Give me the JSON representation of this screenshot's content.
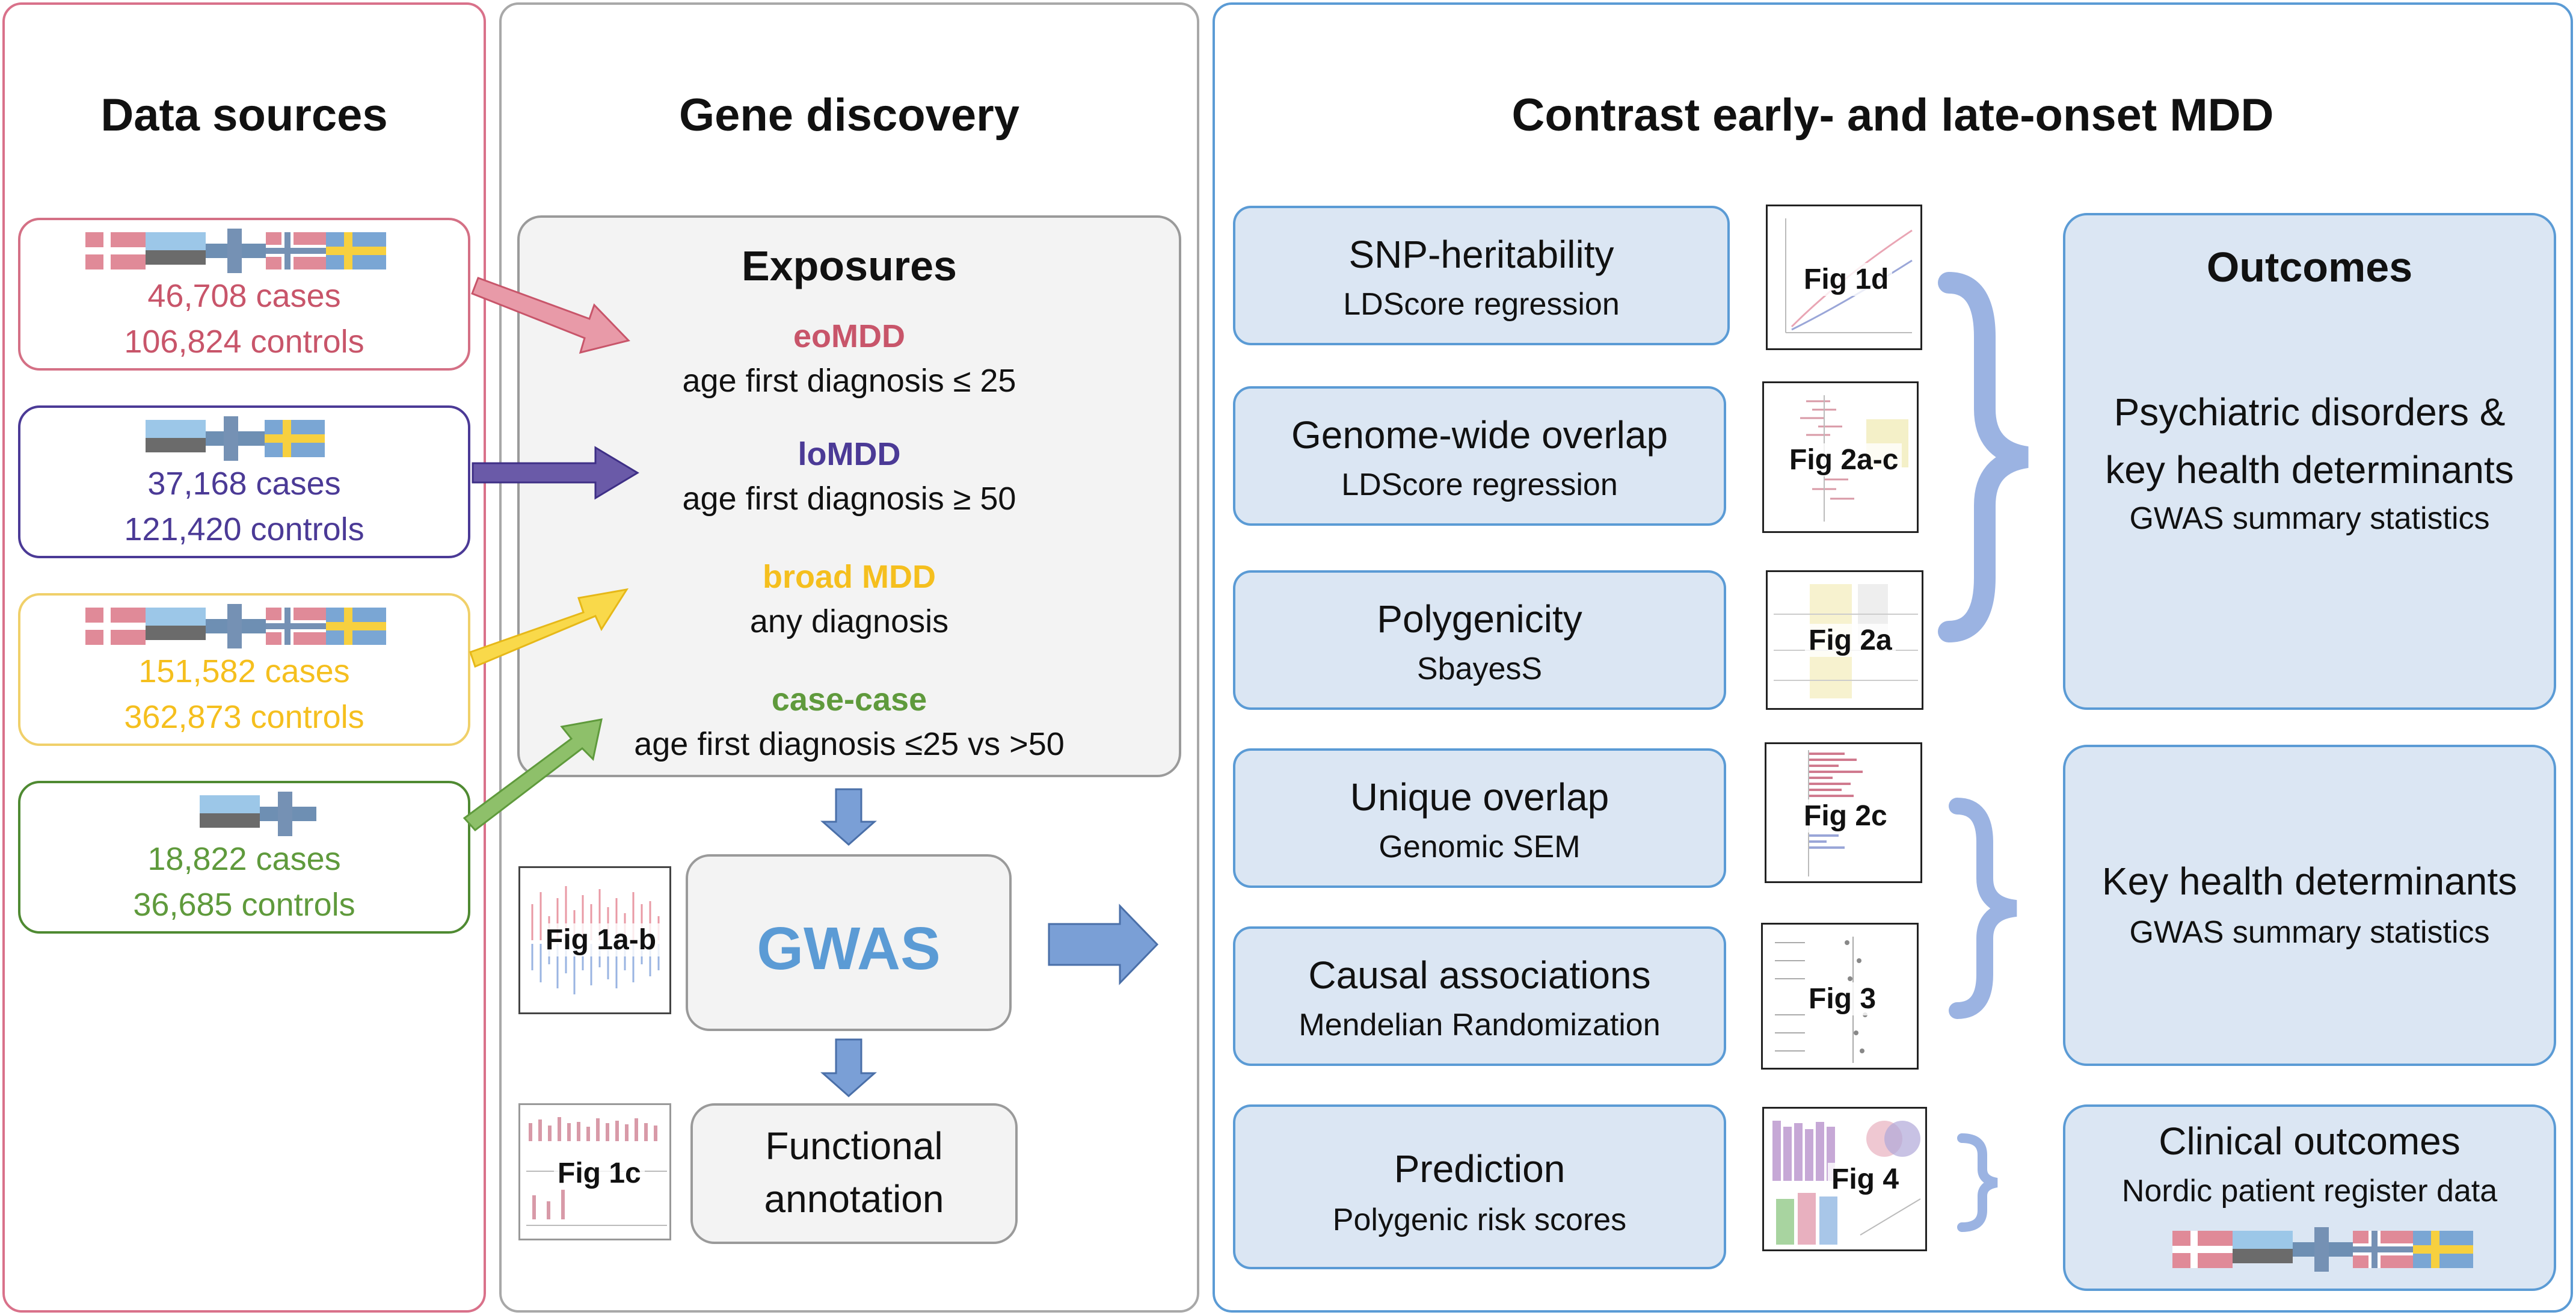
{
  "panels": {
    "data_sources_title": "Data sources",
    "gene_discovery_title": "Gene discovery",
    "contrast_title": "Contrast early- and late-onset MDD"
  },
  "sources": [
    {
      "cases": "46,708  cases",
      "controls": "106,824 controls",
      "color": "#c8556a"
    },
    {
      "cases": "37,168 cases",
      "controls": "121,420 controls",
      "color": "#4b3a96"
    },
    {
      "cases": "151,582 cases",
      "controls": "362,873 controls",
      "color": "#f5bf1e"
    },
    {
      "cases": "18,822 cases",
      "controls": "36,685 controls",
      "color": "#5f9a3c"
    }
  ],
  "exposures": {
    "title": "Exposures",
    "items": [
      {
        "name": "eoMDD",
        "desc": "age first diagnosis ≤ 25",
        "color": "#c8556a"
      },
      {
        "name": "loMDD",
        "desc": "age first diagnosis ≥ 50",
        "color": "#4b3a96"
      },
      {
        "name": "broad MDD",
        "desc": "any diagnosis",
        "color": "#f5bf1e"
      },
      {
        "name": "case-case",
        "desc": "age first diagnosis ≤25 vs >50",
        "color": "#5f9a3c"
      }
    ]
  },
  "gwas": {
    "label": "GWAS",
    "color": "#5b9bd5"
  },
  "functional": {
    "line1": "Functional",
    "line2": "annotation"
  },
  "figs": {
    "fig1ab": "Fig 1a-b",
    "fig1c": "Fig 1c",
    "fig1d": "Fig 1d",
    "fig2ac": "Fig 2a-c",
    "fig2a": "Fig 2a",
    "fig2c": "Fig 2c",
    "fig3": "Fig 3",
    "fig4": "Fig 4"
  },
  "analyses": [
    {
      "title": "SNP-heritability",
      "sub": "LDScore regression"
    },
    {
      "title": "Genome-wide overlap",
      "sub": "LDScore regression"
    },
    {
      "title": "Polygenicity",
      "sub": "SbayesS"
    },
    {
      "title": "Unique overlap",
      "sub": "Genomic SEM"
    },
    {
      "title": "Causal associations",
      "sub": "Mendelian Randomization"
    },
    {
      "title": "Prediction",
      "sub": "Polygenic risk scores"
    }
  ],
  "outcomes": {
    "title": "Outcomes",
    "box1_line1": "Psychiatric disorders &",
    "box1_line2": "key health determinants",
    "box1_sub": "GWAS summary statistics",
    "box2_title": "Key health determinants",
    "box2_sub": "GWAS summary statistics",
    "box3_title": "Clinical outcomes",
    "box3_sub": "Nordic patient register data"
  },
  "colors": {
    "red": "#c8556a",
    "purple": "#4b3a96",
    "yellow": "#f5bf1e",
    "green": "#5f9a3c",
    "blue": "#5b9bd5",
    "arrow_blue": "#7a9fd6"
  }
}
